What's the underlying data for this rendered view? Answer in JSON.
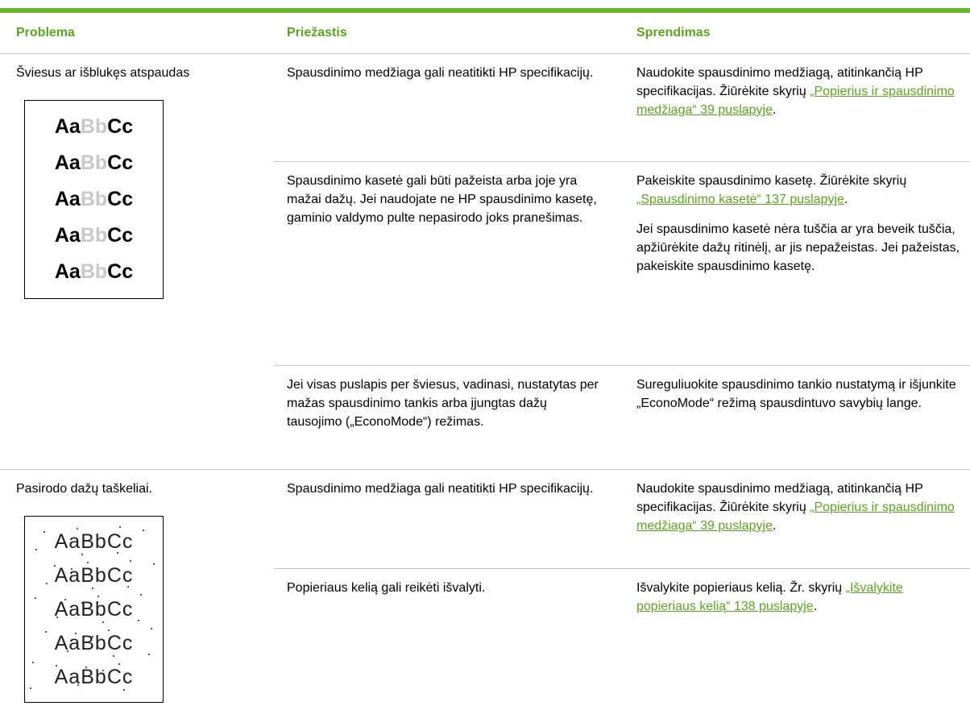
{
  "header": {
    "columns": [
      "Problema",
      "Priežastis",
      "Sprendimas"
    ]
  },
  "table": {
    "groups": [
      {
        "problem": "Šviesus ar išblukęs atspaudas",
        "sample": [
          "Aa",
          "Bb",
          "Cc"
        ],
        "rows": [
          {
            "cause": "Spausdinimo medžiaga gali neatitikti HP specifikacijų.",
            "solution": [
              [
                {
                  "text": "Naudokite spausdinimo medžiagą, atitinkančią HP specifikacijas. Žiūrėkite skyrių "
                },
                {
                  "link": "„Popierius ir spausdinimo medžiaga“ 39 puslapyje"
                },
                {
                  "text": "."
                }
              ]
            ]
          },
          {
            "cause": "Spausdinimo kasetė gali būti pažeista arba joje yra mažai dažų. Jei naudojate ne HP spausdinimo kasetę, gaminio valdymo pulte nepasirodo joks pranešimas.",
            "solution": [
              [
                {
                  "text": "Pakeiskite spausdinimo kasetę. Žiūrėkite skyrių "
                },
                {
                  "link": "„Spausdinimo kasetė“ 137 puslapyje"
                },
                {
                  "text": "."
                }
              ],
              [
                {
                  "text": "Jei spausdinimo kasetė nėra tuščia ar yra beveik tuščia, apžiūrėkite dažų ritinėlį, ar jis nepažeistas. Jei pažeistas, pakeiskite spausdinimo kasetę."
                }
              ]
            ]
          },
          {
            "cause": "Jei visas puslapis per šviesus, vadinasi, nustatytas per mažas spausdinimo tankis arba įjungtas dažų tausojimo („EconoMode“) režimas.",
            "solution": [
              [
                {
                  "text": "Sureguliuokite spausdinimo tankio nustatymą ir išjunkite „EconoMode“ režimą spausdintuvo savybių lange."
                }
              ]
            ]
          }
        ]
      },
      {
        "problem": "Pasirodo dažų taškeliai.",
        "sample": [
          "Aa",
          "Bb",
          "Cc"
        ],
        "rows": [
          {
            "cause": "Spausdinimo medžiaga gali neatitikti HP specifikacijų.",
            "solution": [
              [
                {
                  "text": "Naudokite spausdinimo medžiagą, atitinkančią HP specifikacijas. Žiūrėkite skyrių "
                },
                {
                  "link": "„Popierius ir spausdinimo medžiaga“ 39 puslapyje"
                },
                {
                  "text": "."
                }
              ]
            ]
          },
          {
            "cause": "Popieriaus kelią gali reikėti išvalyti.",
            "solution": [
              [
                {
                  "text": "Išvalykite popieriaus kelią. Žr. skyrių "
                },
                {
                  "link": "„Išvalykite popieriaus kelią“ 138 puslapyje"
                },
                {
                  "text": "."
                }
              ]
            ]
          }
        ]
      }
    ]
  }
}
